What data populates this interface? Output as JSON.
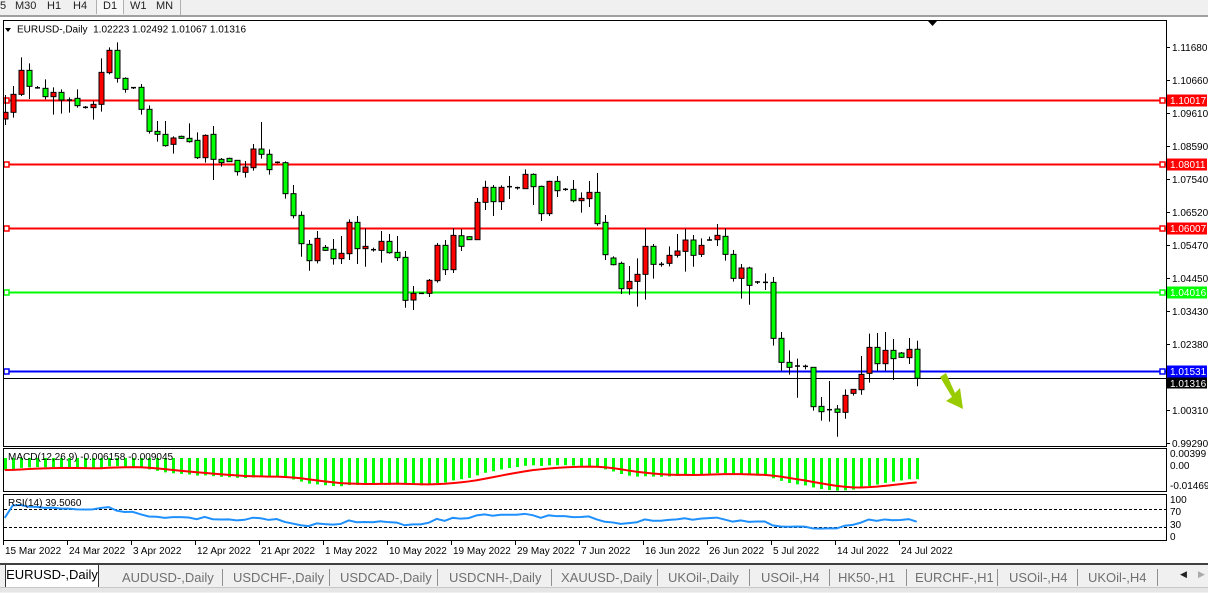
{
  "toolbar": {
    "timeframes": [
      "5",
      "M30",
      "H1",
      "H4",
      "D1",
      "W1",
      "MN"
    ],
    "active": "D1"
  },
  "chart": {
    "symbol_menu_icon": "triangle-down-icon",
    "header": "EURUSD-,Daily  1.02223 1.02492 1.01067 1.01316",
    "colors": {
      "bull": "#ff0000",
      "bear": "#00ff00",
      "macd_hist": "#00ff00",
      "macd_signal": "#ff0000",
      "rsi": "#1e90ff",
      "arrow": "#99cc00"
    },
    "price_axis": [
      "1.11680",
      "1.10660",
      "1.09610",
      "1.08590",
      "1.07540",
      "1.06520",
      "1.05470",
      "1.04450",
      "1.03430",
      "1.02380",
      "1.00310",
      "0.99290"
    ],
    "levels": [
      {
        "price": "1.10017",
        "color": "#ff0000"
      },
      {
        "price": "1.08011",
        "color": "#ff0000"
      },
      {
        "price": "1.06007",
        "color": "#ff0000"
      },
      {
        "price": "1.04016",
        "color": "#00ff00"
      },
      {
        "price": "1.01531",
        "color": "#0000ff"
      }
    ],
    "current_price": "1.01316",
    "annotation": "down-arrow",
    "dates": [
      "15 Mar 2022",
      "24 Mar 2022",
      "3 Apr 2022",
      "12 Apr 2022",
      "21 Apr 2022",
      "1 May 2022",
      "10 May 2022",
      "19 May 2022",
      "29 May 2022",
      "7 Jun 2022",
      "16 Jun 2022",
      "26 Jun 2022",
      "5 Jul 2022",
      "14 Jul 2022",
      "24 Jul 2022"
    ]
  },
  "macd": {
    "label": "MACD(12,26,9) -0.006158 -0.009045",
    "axis_top": "0.00399",
    "axis_zero": "0.00",
    "axis_bottom": "-0.014693"
  },
  "rsi": {
    "label": "RSI(14) 39.5060",
    "axis": [
      "100",
      "70",
      "30",
      "0"
    ]
  },
  "chart_data": {
    "type": "candlestick",
    "series_fields": [
      "open",
      "high",
      "low",
      "close"
    ],
    "ylim": [
      0.9929,
      1.1168
    ],
    "candles": [
      [
        1.09427,
        1.10178,
        1.09239,
        1.09636
      ],
      [
        1.09636,
        1.1046,
        1.09469,
        1.10199
      ],
      [
        1.10199,
        1.11357,
        1.10147,
        1.1095
      ],
      [
        1.1095,
        1.11169,
        1.10053,
        1.10449
      ],
      [
        1.10418,
        1.1046,
        1.10376,
        1.10387
      ],
      [
        1.10387,
        1.10668,
        1.10042,
        1.10126
      ],
      [
        1.10126,
        1.10418,
        1.09563,
        1.10261
      ],
      [
        1.10261,
        1.10355,
        1.09594,
        1.10022
      ],
      [
        1.10022,
        1.10105,
        1.09625,
        1.10022
      ],
      [
        1.10074,
        1.10355,
        1.09782,
        1.09844
      ],
      [
        1.09792,
        1.09834,
        1.0975,
        1.09792
      ],
      [
        1.09782,
        1.0999,
        1.09406,
        1.09886
      ],
      [
        1.09886,
        1.11325,
        1.09657,
        1.10887
      ],
      [
        1.10877,
        1.1167,
        1.10825,
        1.11576
      ],
      [
        1.11576,
        1.11826,
        1.10564,
        1.107
      ],
      [
        1.107,
        1.10731,
        1.10251,
        1.10355
      ],
      [
        1.10408,
        1.10428,
        1.10366,
        1.10408
      ],
      [
        1.10418,
        1.10522,
        1.09563,
        1.0973
      ],
      [
        1.0973,
        1.09855,
        1.08968,
        1.09041
      ],
      [
        1.09041,
        1.09365,
        1.08718,
        1.08947
      ],
      [
        1.08947,
        1.09365,
        1.08561,
        1.08593
      ],
      [
        1.08634,
        1.08885,
        1.08342,
        1.08833
      ],
      [
        1.08885,
        1.08906,
        1.08801,
        1.08822
      ],
      [
        1.08822,
        1.09291,
        1.08687,
        1.08718
      ],
      [
        1.0876,
        1.0901,
        1.08175,
        1.08217
      ],
      [
        1.08217,
        1.08947,
        1.08061,
        1.08916
      ],
      [
        1.08947,
        1.09208,
        1.07518,
        1.08165
      ],
      [
        1.08165,
        1.08207,
        1.07936,
        1.08061
      ],
      [
        1.08196,
        1.08217,
        1.08082,
        1.08092
      ],
      [
        1.08134,
        1.08144,
        1.07654,
        1.07779
      ],
      [
        1.07758,
        1.08113,
        1.07591,
        1.07925
      ],
      [
        1.07904,
        1.08645,
        1.0781,
        1.08488
      ],
      [
        1.08488,
        1.09333,
        1.08186,
        1.08322
      ],
      [
        1.08322,
        1.08478,
        1.07685,
        1.07842
      ],
      [
        1.08071,
        1.08102,
        1.0804,
        1.08071
      ],
      [
        1.08061,
        1.08102,
        1.06934,
        1.07091
      ],
      [
        1.07091,
        1.07362,
        1.06319,
        1.06402
      ],
      [
        1.06413,
        1.06538,
        1.05119,
        1.05526
      ],
      [
        1.05505,
        1.05641,
        1.04681,
        1.04994
      ],
      [
        1.04994,
        1.05922,
        1.04911,
        1.05693
      ],
      [
        1.05411,
        1.05484,
        1.05297,
        1.05317
      ],
      [
        1.05349,
        1.05672,
        1.04869,
        1.05057
      ],
      [
        1.05057,
        1.05766,
        1.0489,
        1.05224
      ],
      [
        1.05213,
        1.06287,
        1.05015,
        1.06194
      ],
      [
        1.06194,
        1.06392,
        1.0489,
        1.0537
      ],
      [
        1.0537,
        1.06006,
        1.04806,
        1.05443
      ],
      [
        1.05338,
        1.05401,
        1.05276,
        1.05338
      ],
      [
        1.05317,
        1.05922,
        1.04932,
        1.05599
      ],
      [
        1.05599,
        1.05829,
        1.05213,
        1.05244
      ],
      [
        1.05255,
        1.05766,
        1.04984,
        1.05088
      ],
      [
        1.05098,
        1.05297,
        1.03523,
        1.03753
      ],
      [
        1.03763,
        1.04201,
        1.0345,
        1.03972
      ],
      [
        1.03972,
        1.03982,
        1.03962,
        1.03972
      ],
      [
        1.03972,
        1.0442,
        1.03857,
        1.04379
      ],
      [
        1.04368,
        1.05547,
        1.04306,
        1.05474
      ],
      [
        1.05474,
        1.05641,
        1.04546,
        1.04713
      ],
      [
        1.04713,
        1.06006,
        1.04608,
        1.05787
      ],
      [
        1.05776,
        1.05985,
        1.05297,
        1.05443
      ],
      [
        1.05745,
        1.05756,
        1.05641,
        1.05651
      ],
      [
        1.05651,
        1.06955,
        1.05641,
        1.06819
      ],
      [
        1.06819,
        1.07497,
        1.0658,
        1.07289
      ],
      [
        1.07289,
        1.07362,
        1.06392,
        1.0684
      ],
      [
        1.0684,
        1.07351,
        1.0658,
        1.07289
      ],
      [
        1.0731,
        1.07643,
        1.06924,
        1.0731
      ],
      [
        1.07278,
        1.0731,
        1.07216,
        1.07278
      ],
      [
        1.07247,
        1.07852,
        1.07237,
        1.07696
      ],
      [
        1.07696,
        1.07727,
        1.06736,
        1.0731
      ],
      [
        1.0732,
        1.07341,
        1.06235,
        1.06465
      ],
      [
        1.06465,
        1.07497,
        1.06392,
        1.07476
      ],
      [
        1.07476,
        1.07643,
        1.06986,
        1.07184
      ],
      [
        1.07226,
        1.07268,
        1.07184,
        1.07226
      ],
      [
        1.07226,
        1.07518,
        1.06819,
        1.06871
      ],
      [
        1.06871,
        1.07132,
        1.06496,
        1.06945
      ],
      [
        1.06934,
        1.07487,
        1.06673,
        1.07132
      ],
      [
        1.07132,
        1.07737,
        1.06089,
        1.06152
      ],
      [
        1.06194,
        1.06423,
        1.05015,
        1.05182
      ],
      [
        1.05078,
        1.0513,
        1.04848,
        1.04869
      ],
      [
        1.04911,
        1.04963,
        1.03951,
        1.04118
      ],
      [
        1.04118,
        1.04827,
        1.0393,
        1.04347
      ],
      [
        1.04347,
        1.05067,
        1.03555,
        1.04567
      ],
      [
        1.04567,
        1.06006,
        1.03774,
        1.05443
      ],
      [
        1.05443,
        1.05516,
        1.04431,
        1.04879
      ],
      [
        1.04879,
        1.04952,
        1.04806,
        1.04879
      ],
      [
        1.04911,
        1.05443,
        1.04817,
        1.05161
      ],
      [
        1.05161,
        1.05829,
        1.05088,
        1.05297
      ],
      [
        1.05286,
        1.05995,
        1.0465,
        1.05641
      ],
      [
        1.05641,
        1.05797,
        1.04806,
        1.05161
      ],
      [
        1.05192,
        1.05693,
        1.05109,
        1.05474
      ],
      [
        1.05641,
        1.05745,
        1.0562,
        1.05641
      ],
      [
        1.05651,
        1.06141,
        1.05453,
        1.05787
      ],
      [
        1.05756,
        1.06006,
        1.04994,
        1.05192
      ],
      [
        1.05192,
        1.05328,
        1.04337,
        1.04441
      ],
      [
        1.04441,
        1.0489,
        1.03805,
        1.04765
      ],
      [
        1.04765,
        1.04806,
        1.03617,
        1.04222
      ],
      [
        1.04327,
        1.04358,
        1.04264,
        1.04327
      ],
      [
        1.04316,
        1.04598,
        1.04076,
        1.04316
      ],
      [
        1.04316,
        1.04483,
        1.02335,
        1.02564
      ],
      [
        1.02564,
        1.02762,
        1.01552,
        1.01813
      ],
      [
        1.01813,
        1.02188,
        1.01427,
        1.01657
      ],
      [
        1.01698,
        1.01928,
        1.00707,
        1.01698
      ],
      [
        1.01719,
        1.0174,
        1.01594,
        1.01657
      ],
      [
        1.01657,
        1.01657,
        1.00301,
        1.00426
      ],
      [
        1.00436,
        1.00728,
        0.99988,
        1.00269
      ],
      [
        1.00332,
        1.01229,
        0.99957,
        1.00332
      ],
      [
        1.00353,
        1.00478,
        0.99487,
        1.00249
      ],
      [
        1.00249,
        1.00968,
        1.0005,
        1.0078
      ],
      [
        1.00843,
        1.00968,
        1.0077,
        1.00968
      ],
      [
        1.00958,
        1.02011,
        1.00801,
        1.01437
      ],
      [
        1.01469,
        1.0271,
        1.01177,
        1.02282
      ],
      [
        1.02282,
        1.02731,
        1.01552,
        1.01771
      ],
      [
        1.01771,
        1.02762,
        1.01552,
        1.02189
      ],
      [
        1.02189,
        1.02543,
        1.0126,
        1.01928
      ],
      [
        1.02105,
        1.02137,
        1.01949,
        1.0197
      ],
      [
        1.01959,
        1.02574,
        1.01761,
        1.0222
      ],
      [
        1.02223,
        1.02492,
        1.01067,
        1.01316
      ]
    ]
  },
  "tabs": [
    {
      "label": "EURUSD-,Daily",
      "active": true
    },
    {
      "label": "AUDUSD-,Daily"
    },
    {
      "label": "USDCHF-,Daily"
    },
    {
      "label": "USDCAD-,Daily"
    },
    {
      "label": "USDCNH-,Daily"
    },
    {
      "label": "XAUUSD-,Daily"
    },
    {
      "label": "UKOil-,Daily"
    },
    {
      "label": "USOil-,H4"
    },
    {
      "label": "HK50-,H1"
    },
    {
      "label": "EURCHF-,H1"
    },
    {
      "label": "USOil-,H4"
    },
    {
      "label": "UKOil-,H4"
    }
  ],
  "tab_nav": {
    "left_icon": "scroll-left-icon",
    "right_icon": "scroll-right-icon"
  }
}
